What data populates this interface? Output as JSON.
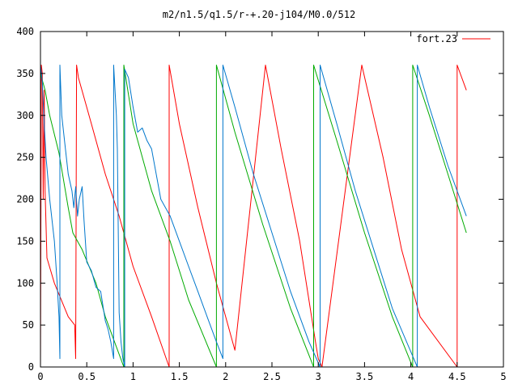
{
  "chart_data": {
    "type": "line",
    "title": "m2/n1.5/q1.5/r-+.20-j104/M0.0/512",
    "xlabel": "",
    "ylabel": "",
    "xlim": [
      0,
      5
    ],
    "ylim": [
      0,
      400
    ],
    "xticks": [
      0,
      0.5,
      1,
      1.5,
      2,
      2.5,
      3,
      3.5,
      4,
      4.5,
      5
    ],
    "xtick_labels": [
      "0",
      "0.5",
      "1",
      "1.5",
      "2",
      "2.5",
      "3",
      "3.5",
      "4",
      "4.5",
      "5"
    ],
    "yticks": [
      0,
      50,
      100,
      150,
      200,
      250,
      300,
      350,
      400
    ],
    "ytick_labels": [
      "0",
      "50",
      "100",
      "150",
      "200",
      "250",
      "300",
      "350",
      "400"
    ],
    "grid": false,
    "legend": {
      "label": "fort.23",
      "position": "top-right",
      "color": "#ff0000"
    },
    "series": [
      {
        "color": "#ff0000",
        "points": [
          [
            0.0,
            0
          ],
          [
            0.01,
            360
          ],
          [
            0.02,
            350
          ],
          [
            0.03,
            200
          ],
          [
            0.04,
            330
          ],
          [
            0.05,
            210
          ],
          [
            0.07,
            130
          ],
          [
            0.15,
            100
          ],
          [
            0.3,
            60
          ],
          [
            0.37,
            50
          ],
          [
            0.38,
            10
          ],
          [
            0.39,
            360
          ],
          [
            0.41,
            345
          ],
          [
            0.55,
            290
          ],
          [
            0.7,
            230
          ],
          [
            0.85,
            180
          ],
          [
            1.0,
            120
          ],
          [
            1.2,
            60
          ],
          [
            1.39,
            0
          ],
          [
            1.39,
            360
          ],
          [
            1.5,
            290
          ],
          [
            1.7,
            190
          ],
          [
            1.9,
            100
          ],
          [
            2.1,
            20
          ],
          [
            2.43,
            360
          ],
          [
            2.6,
            260
          ],
          [
            2.8,
            150
          ],
          [
            2.97,
            30
          ],
          [
            3.0,
            10
          ],
          [
            3.04,
            0
          ],
          [
            3.47,
            360
          ],
          [
            3.7,
            250
          ],
          [
            3.9,
            140
          ],
          [
            4.1,
            60
          ],
          [
            4.5,
            0
          ],
          [
            4.5,
            360
          ],
          [
            4.6,
            330
          ]
        ]
      },
      {
        "color": "#00aa00",
        "points": [
          [
            0.0,
            350
          ],
          [
            0.05,
            330
          ],
          [
            0.1,
            300
          ],
          [
            0.2,
            255
          ],
          [
            0.3,
            190
          ],
          [
            0.35,
            160
          ],
          [
            0.45,
            140
          ],
          [
            0.6,
            100
          ],
          [
            0.7,
            60
          ],
          [
            0.8,
            30
          ],
          [
            0.9,
            0
          ],
          [
            0.9,
            360
          ],
          [
            1.0,
            290
          ],
          [
            1.2,
            210
          ],
          [
            1.4,
            150
          ],
          [
            1.6,
            80
          ],
          [
            1.9,
            0
          ],
          [
            1.9,
            360
          ],
          [
            2.1,
            280
          ],
          [
            2.4,
            170
          ],
          [
            2.7,
            70
          ],
          [
            2.95,
            0
          ],
          [
            2.95,
            360
          ],
          [
            3.2,
            270
          ],
          [
            3.5,
            160
          ],
          [
            3.8,
            60
          ],
          [
            4.02,
            0
          ],
          [
            4.02,
            360
          ],
          [
            4.2,
            300
          ],
          [
            4.4,
            230
          ],
          [
            4.6,
            160
          ]
        ]
      },
      {
        "color": "#0077cc",
        "points": [
          [
            0.0,
            360
          ],
          [
            0.02,
            340
          ],
          [
            0.04,
            290
          ],
          [
            0.06,
            250
          ],
          [
            0.1,
            200
          ],
          [
            0.15,
            150
          ],
          [
            0.18,
            100
          ],
          [
            0.2,
            60
          ],
          [
            0.21,
            10
          ],
          [
            0.21,
            360
          ],
          [
            0.23,
            300
          ],
          [
            0.26,
            270
          ],
          [
            0.3,
            230
          ],
          [
            0.34,
            210
          ],
          [
            0.36,
            190
          ],
          [
            0.38,
            215
          ],
          [
            0.4,
            180
          ],
          [
            0.42,
            200
          ],
          [
            0.45,
            215
          ],
          [
            0.47,
            175
          ],
          [
            0.5,
            125
          ],
          [
            0.55,
            115
          ],
          [
            0.6,
            95
          ],
          [
            0.65,
            90
          ],
          [
            0.7,
            55
          ],
          [
            0.73,
            45
          ],
          [
            0.76,
            30
          ],
          [
            0.79,
            10
          ],
          [
            0.79,
            360
          ],
          [
            0.82,
            300
          ],
          [
            0.83,
            260
          ],
          [
            0.85,
            65
          ],
          [
            0.87,
            30
          ],
          [
            0.89,
            10
          ],
          [
            0.91,
            0
          ],
          [
            0.91,
            355
          ],
          [
            0.95,
            345
          ],
          [
            1.0,
            310
          ],
          [
            1.05,
            280
          ],
          [
            1.1,
            285
          ],
          [
            1.15,
            270
          ],
          [
            1.2,
            260
          ],
          [
            1.3,
            200
          ],
          [
            1.4,
            180
          ],
          [
            1.5,
            150
          ],
          [
            1.6,
            120
          ],
          [
            1.7,
            90
          ],
          [
            1.8,
            60
          ],
          [
            1.9,
            30
          ],
          [
            1.97,
            10
          ],
          [
            1.97,
            360
          ],
          [
            2.1,
            310
          ],
          [
            2.3,
            230
          ],
          [
            2.5,
            160
          ],
          [
            2.7,
            90
          ],
          [
            2.9,
            30
          ],
          [
            3.02,
            0
          ],
          [
            3.02,
            360
          ],
          [
            3.2,
            290
          ],
          [
            3.4,
            210
          ],
          [
            3.6,
            140
          ],
          [
            3.8,
            70
          ],
          [
            4.07,
            0
          ],
          [
            4.07,
            360
          ],
          [
            4.2,
            310
          ],
          [
            4.4,
            240
          ],
          [
            4.6,
            180
          ]
        ]
      }
    ]
  }
}
